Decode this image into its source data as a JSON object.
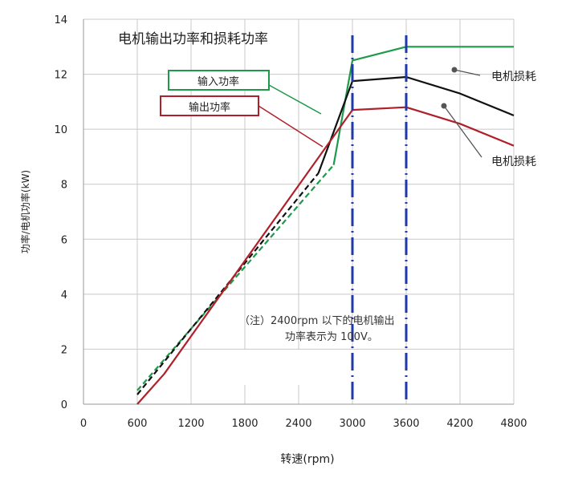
{
  "chart_data": {
    "type": "line",
    "title": "电机输出功率和损耗功率",
    "xlabel": "转速(rpm)",
    "ylabel": "功率/电机功率(kW)",
    "xlim": [
      0,
      4800
    ],
    "ylim": [
      0,
      14
    ],
    "x_ticks": [
      0,
      600,
      1200,
      1800,
      2400,
      3000,
      3600,
      4200,
      4800
    ],
    "y_ticks": [
      0,
      2,
      4,
      6,
      8,
      10,
      12,
      14
    ],
    "grid": true,
    "colors": {
      "input": "#1e9a4a",
      "output": "#b0202a",
      "middle": "#111111",
      "vline": "#1f3aa8",
      "grid": "#c8c8c8"
    },
    "series": [
      {
        "name": "输入功率",
        "color": "#1e9a4a",
        "dashed_points": [
          [
            600,
            0.5
          ],
          [
            2790,
            8.7
          ]
        ],
        "solid_points": [
          [
            2790,
            8.7
          ],
          [
            3000,
            12.5
          ],
          [
            3600,
            13.0
          ],
          [
            4800,
            13.0
          ]
        ]
      },
      {
        "color": "#111111",
        "dashed_points": [
          [
            600,
            0.35
          ],
          [
            2620,
            8.4
          ]
        ],
        "solid_points": [
          [
            2620,
            8.4
          ],
          [
            3000,
            11.75
          ],
          [
            3600,
            11.9
          ],
          [
            4200,
            11.3
          ],
          [
            4800,
            10.5
          ]
        ]
      },
      {
        "name": "输出功率",
        "color": "#b0202a",
        "solid_points": [
          [
            600,
            0.0
          ],
          [
            900,
            1.1
          ],
          [
            3000,
            10.7
          ],
          [
            3600,
            10.8
          ],
          [
            4200,
            10.2
          ],
          [
            4800,
            9.4
          ]
        ]
      }
    ],
    "vertical_markers": [
      3000,
      3600
    ],
    "annotations": {
      "loss_label_1": "电机损耗",
      "loss_label_2": "电机损耗",
      "note_line_1": "（注）2400rpm 以下的电机输出",
      "note_line_2": "功率表示为 100V。"
    }
  }
}
